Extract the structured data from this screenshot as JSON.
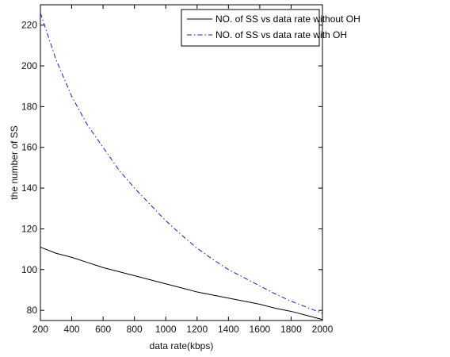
{
  "chart_data": {
    "type": "line",
    "title": "",
    "xlabel": "data rate(kbps)",
    "ylabel": "the number of SS",
    "xlim": [
      200,
      2000
    ],
    "ylim": [
      75,
      230
    ],
    "xticks": [
      200,
      400,
      600,
      800,
      1000,
      1200,
      1400,
      1600,
      1800,
      2000
    ],
    "yticks": [
      80,
      100,
      120,
      140,
      160,
      180,
      200,
      220
    ],
    "grid": false,
    "legend_position": "top-right",
    "x": [
      200,
      300,
      400,
      500,
      600,
      700,
      800,
      900,
      1000,
      1100,
      1200,
      1300,
      1400,
      1500,
      1600,
      1700,
      1800,
      1900,
      2000
    ],
    "series": [
      {
        "name": "NO. of SS vs data rate without OH",
        "color": "#000000",
        "style": "solid",
        "values": [
          111,
          108,
          106,
          103.5,
          101,
          99,
          97,
          95,
          93,
          91,
          89,
          87.5,
          86,
          84.5,
          83,
          81,
          79.5,
          77.5,
          75.5
        ]
      },
      {
        "name": "NO. of SS vs data rate with OH",
        "color": "#1a1acc",
        "style": "dash-dot",
        "values": [
          226,
          203,
          185,
          171,
          160,
          149,
          140,
          132,
          124,
          117,
          110.5,
          105,
          100,
          96,
          92,
          88,
          84.5,
          81.5,
          78.5
        ]
      }
    ]
  }
}
